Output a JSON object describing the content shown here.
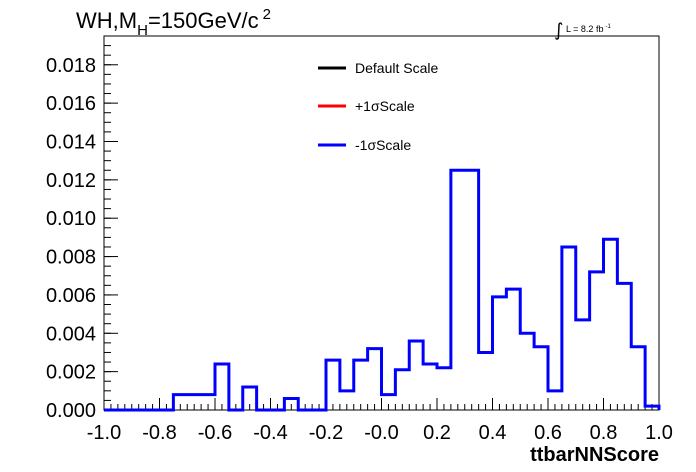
{
  "chart_data": {
    "type": "line",
    "title_main": "WH,M",
    "title_sub": "H",
    "title_rest": "=150GeV/c",
    "title_sup": "2",
    "lumi": {
      "symbol": "∫",
      "text": "L = 8.2 fb",
      "sup": "-1"
    },
    "xlabel": "ttbarNNScore",
    "xlim": [
      -1.0,
      1.0
    ],
    "ylim": [
      0,
      0.0195
    ],
    "x_ticks": [
      "-1.0",
      "-0.8",
      "-0.6",
      "-0.4",
      "-0.2",
      "-0.0",
      "0.2",
      "0.4",
      "0.6",
      "0.8",
      "1.0"
    ],
    "y_ticks": [
      "0.000",
      "0.002",
      "0.004",
      "0.006",
      "0.008",
      "0.010",
      "0.012",
      "0.014",
      "0.016",
      "0.018"
    ],
    "bin_edges": [
      -1.0,
      -0.95,
      -0.9,
      -0.85,
      -0.8,
      -0.75,
      -0.7,
      -0.65,
      -0.6,
      -0.55,
      -0.5,
      -0.45,
      -0.4,
      -0.35,
      -0.3,
      -0.25,
      -0.2,
      -0.15,
      -0.1,
      -0.05,
      0.0,
      0.05,
      0.1,
      0.15,
      0.2,
      0.25,
      0.3,
      0.35,
      0.4,
      0.45,
      0.5,
      0.55,
      0.6,
      0.65,
      0.7,
      0.75,
      0.8,
      0.85,
      0.9,
      0.95,
      1.0
    ],
    "legend": [
      {
        "label": "Default Scale",
        "color": "#000000"
      },
      {
        "label": "+1σScale",
        "color": "#ff0000"
      },
      {
        "label": "-1σScale",
        "color": "#0000ff"
      }
    ],
    "series": [
      {
        "name": "-1σScale",
        "color": "#0000ff",
        "values": [
          0,
          0,
          0,
          0,
          0,
          0.0008,
          0.0008,
          0.0008,
          0.0024,
          0,
          0.0012,
          0,
          0,
          0.0006,
          0,
          0,
          0.0026,
          0.001,
          0.0026,
          0.0032,
          0.0008,
          0.0021,
          0.0036,
          0.0024,
          0.0022,
          0.0125,
          0.0125,
          0.003,
          0.0059,
          0.0063,
          0.004,
          0.0033,
          0.001,
          0.0085,
          0.0047,
          0.0072,
          0.0089,
          0.0066,
          0.0033,
          0.0002
        ]
      }
    ]
  }
}
